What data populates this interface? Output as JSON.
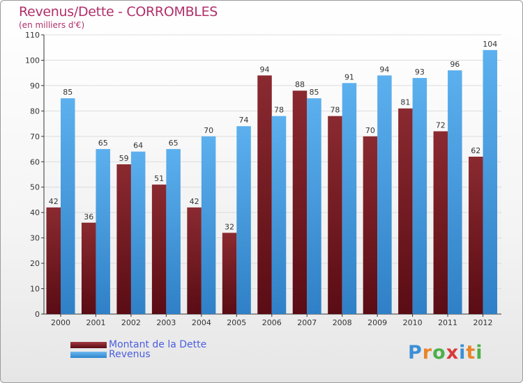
{
  "title": "Revenus/Dette - CORROMBLES",
  "subtitle": "(en milliers d'€)",
  "colors": {
    "debt": "#7a1a22",
    "revenue": "#4aa3e6",
    "title": "#b0306a",
    "legend_text": "#4a5ee0"
  },
  "logo": {
    "text": "Proxiti",
    "letters": [
      {
        "ch": "P",
        "color": "#3b8fd6"
      },
      {
        "ch": "r",
        "color": "#e9852a"
      },
      {
        "ch": "o",
        "color": "#4db04a"
      },
      {
        "ch": "x",
        "color": "#d83a3a"
      },
      {
        "ch": "i",
        "color": "#3b8fd6"
      },
      {
        "ch": "t",
        "color": "#e9852a"
      },
      {
        "ch": "i",
        "color": "#4db04a"
      }
    ]
  },
  "chart_data": {
    "type": "bar",
    "title": "Revenus/Dette - CORROMBLES",
    "subtitle": "(en milliers d'€)",
    "xlabel": "",
    "ylabel": "",
    "ylim": [
      0,
      110
    ],
    "yticks": [
      0,
      10,
      20,
      30,
      40,
      50,
      60,
      70,
      80,
      90,
      100,
      110
    ],
    "grid": true,
    "legend_position": "bottom-left",
    "categories": [
      "2000",
      "2001",
      "2002",
      "2003",
      "2004",
      "2005",
      "2006",
      "2007",
      "2008",
      "2009",
      "2010",
      "2011",
      "2012"
    ],
    "series": [
      {
        "name": "Montant de la Dette",
        "color": "#7a1a22",
        "values": [
          42,
          36,
          59,
          51,
          42,
          32,
          94,
          88,
          78,
          70,
          81,
          72,
          62
        ]
      },
      {
        "name": "Revenus",
        "color": "#4aa3e6",
        "values": [
          85,
          65,
          64,
          65,
          70,
          74,
          78,
          85,
          91,
          94,
          93,
          96,
          104
        ]
      }
    ]
  }
}
